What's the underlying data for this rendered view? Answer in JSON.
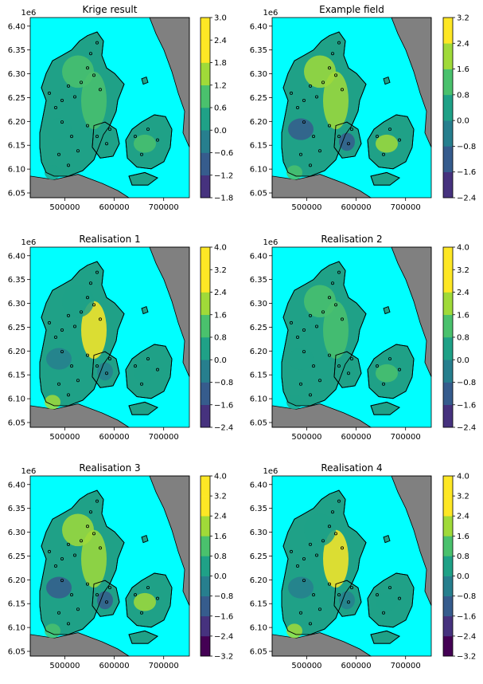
{
  "palette": {
    "sea": "#00FFFF",
    "neighbour_land": "#808080",
    "coast": "#000000",
    "station_marker": "#000000",
    "viridis_levels": [
      "#440154",
      "#46327e",
      "#365c8d",
      "#277f8e",
      "#1fa187",
      "#4ac16d",
      "#a0da39",
      "#fde725"
    ]
  },
  "chart_data": [
    {
      "type": "heatmap",
      "title": "Krige result",
      "x_ticks": [
        "500000",
        "600000",
        "700000"
      ],
      "y_ticks": [
        "6.05",
        "6.10",
        "6.15",
        "6.20",
        "6.25",
        "6.30",
        "6.35",
        "6.40"
      ],
      "y_offset": "1e6",
      "xlim": [
        430000,
        752000
      ],
      "ylim": [
        6040000,
        6418000
      ],
      "colorbar_ticks": [
        "−1.8",
        "−1.2",
        "−0.6",
        "0.0",
        "0.6",
        "1.2",
        "1.8",
        "2.4",
        "3.0"
      ],
      "colorbar_range": [
        -1.8,
        3.0
      ],
      "grid": false
    },
    {
      "type": "heatmap",
      "title": "Example field",
      "x_ticks": [
        "500000",
        "600000",
        "700000"
      ],
      "y_ticks": [
        "6.05",
        "6.10",
        "6.15",
        "6.20",
        "6.25",
        "6.30",
        "6.35",
        "6.40"
      ],
      "y_offset": "1e6",
      "xlim": [
        430000,
        752000
      ],
      "ylim": [
        6040000,
        6418000
      ],
      "colorbar_ticks": [
        "−2.4",
        "−1.6",
        "−0.8",
        "0.0",
        "0.8",
        "1.6",
        "2.4",
        "3.2"
      ],
      "colorbar_range": [
        -2.4,
        3.2
      ],
      "grid": false
    },
    {
      "type": "heatmap",
      "title": "Realisation 1",
      "x_ticks": [
        "500000",
        "600000",
        "700000"
      ],
      "y_ticks": [
        "6.05",
        "6.10",
        "6.15",
        "6.20",
        "6.25",
        "6.30",
        "6.35",
        "6.40"
      ],
      "y_offset": "1e6",
      "xlim": [
        430000,
        752000
      ],
      "ylim": [
        6040000,
        6418000
      ],
      "colorbar_ticks": [
        "−2.4",
        "−1.6",
        "−0.8",
        "0.0",
        "0.8",
        "1.6",
        "2.4",
        "3.2",
        "4.0"
      ],
      "colorbar_range": [
        -2.4,
        4.0
      ],
      "grid": false
    },
    {
      "type": "heatmap",
      "title": "Realisation 2",
      "x_ticks": [
        "500000",
        "600000",
        "700000"
      ],
      "y_ticks": [
        "6.05",
        "6.10",
        "6.15",
        "6.20",
        "6.25",
        "6.30",
        "6.35",
        "6.40"
      ],
      "y_offset": "1e6",
      "xlim": [
        430000,
        752000
      ],
      "ylim": [
        6040000,
        6418000
      ],
      "colorbar_ticks": [
        "−2.4",
        "−1.6",
        "−0.8",
        "0.0",
        "0.8",
        "1.6",
        "2.4",
        "3.2",
        "4.0"
      ],
      "colorbar_range": [
        -2.4,
        4.0
      ],
      "grid": false
    },
    {
      "type": "heatmap",
      "title": "Realisation 3",
      "x_ticks": [
        "500000",
        "600000",
        "700000"
      ],
      "y_ticks": [
        "6.05",
        "6.10",
        "6.15",
        "6.20",
        "6.25",
        "6.30",
        "6.35",
        "6.40"
      ],
      "y_offset": "1e6",
      "xlim": [
        430000,
        752000
      ],
      "ylim": [
        6040000,
        6418000
      ],
      "colorbar_ticks": [
        "−3.2",
        "−2.4",
        "−1.6",
        "−0.8",
        "0.0",
        "0.8",
        "1.6",
        "2.4",
        "3.2",
        "4.0"
      ],
      "colorbar_range": [
        -3.2,
        4.0
      ],
      "grid": false
    },
    {
      "type": "heatmap",
      "title": "Realisation 4",
      "x_ticks": [
        "500000",
        "600000",
        "700000"
      ],
      "y_ticks": [
        "6.05",
        "6.10",
        "6.15",
        "6.20",
        "6.25",
        "6.30",
        "6.35",
        "6.40"
      ],
      "y_offset": "1e6",
      "xlim": [
        430000,
        752000
      ],
      "ylim": [
        6040000,
        6418000
      ],
      "colorbar_ticks": [
        "−3.2",
        "−2.4",
        "−1.6",
        "−0.8",
        "0.0",
        "0.8",
        "1.6",
        "2.4",
        "3.2",
        "4.0"
      ],
      "colorbar_range": [
        -3.2,
        4.0
      ],
      "grid": false
    }
  ]
}
